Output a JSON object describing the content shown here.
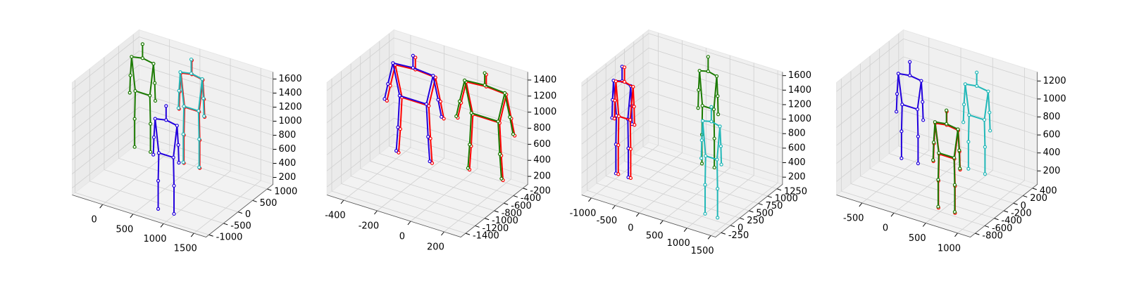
{
  "chart_data": [
    {
      "type": "scatter3d",
      "xlim": [
        -500,
        1700
      ],
      "ylim": [
        -1100,
        1200
      ],
      "zlim": [
        100,
        1700
      ],
      "xticks": [
        0,
        500,
        1000,
        1500
      ],
      "yticks": [
        -1000,
        -500,
        0,
        500,
        1000
      ],
      "zticks": [
        200,
        400,
        600,
        800,
        1000,
        1200,
        1400,
        1600
      ],
      "series": [
        {
          "color": "#1a7a00",
          "x": [
            -300,
            -300,
            -480,
            -500,
            -510,
            -120,
            -100,
            -90,
            -420,
            -430,
            -430,
            -180,
            -170,
            -170
          ],
          "y": [
            900,
            900,
            900,
            900,
            900,
            900,
            900,
            900,
            900,
            900,
            900,
            900,
            900,
            900
          ],
          "z": [
            1650,
            1450,
            1420,
            1150,
            900,
            1420,
            1150,
            900,
            950,
            550,
            150,
            950,
            550,
            150
          ]
        },
        {
          "color": "#ff0000",
          "x": [
            520,
            520,
            340,
            320,
            310,
            700,
            720,
            730,
            400,
            390,
            390,
            640,
            650,
            650
          ],
          "y": [
            880,
            880,
            880,
            880,
            880,
            880,
            880,
            880,
            880,
            880,
            880,
            880,
            880,
            880
          ],
          "z": [
            1650,
            1450,
            1420,
            1150,
            900,
            1420,
            1150,
            900,
            950,
            550,
            150,
            950,
            550,
            150
          ]
        },
        {
          "color": "#22b8b8",
          "x": [
            500,
            500,
            320,
            300,
            290,
            680,
            700,
            710,
            380,
            370,
            370,
            620,
            630,
            630
          ],
          "y": [
            900,
            900,
            900,
            900,
            900,
            900,
            900,
            900,
            900,
            900,
            900,
            900,
            900,
            900
          ],
          "z": [
            1650,
            1450,
            1420,
            1150,
            900,
            1420,
            1150,
            900,
            950,
            550,
            150,
            950,
            550,
            150
          ]
        },
        {
          "color": "#2200dd",
          "x": [
            900,
            900,
            720,
            700,
            690,
            1080,
            1100,
            1110,
            780,
            770,
            770,
            1020,
            1030,
            1030
          ],
          "y": [
            -800,
            -800,
            -800,
            -800,
            -800,
            -800,
            -800,
            -800,
            -800,
            -800,
            -800,
            -800,
            -800,
            -800
          ],
          "z": [
            1650,
            1450,
            1420,
            1150,
            900,
            1420,
            1150,
            900,
            950,
            550,
            150,
            950,
            550,
            150
          ]
        }
      ]
    },
    {
      "type": "scatter3d",
      "xlim": [
        -500,
        300
      ],
      "ylim": [
        -1500,
        -100
      ],
      "zlim": [
        100,
        1500
      ],
      "xticks": [
        -400,
        -200,
        0,
        200
      ],
      "yticks": [
        -1400,
        -1200,
        -1000,
        -800,
        -600,
        -400,
        -200
      ],
      "zticks": [
        200,
        400,
        600,
        800,
        1000,
        1200,
        1400
      ],
      "series": [
        {
          "color": "#ff0000",
          "x": [
            -280,
            -280,
            -400,
            -430,
            -450,
            -160,
            -130,
            -110,
            -360,
            -370,
            -380,
            -200,
            -190,
            -180
          ],
          "y": [
            -420,
            -420,
            -420,
            -420,
            -420,
            -420,
            -420,
            -420,
            -420,
            -420,
            -420,
            -420,
            -420,
            -420
          ],
          "z": [
            1450,
            1300,
            1280,
            1000,
            800,
            1280,
            1000,
            800,
            900,
            500,
            200,
            900,
            500,
            200
          ]
        },
        {
          "color": "#2200dd",
          "x": [
            -300,
            -300,
            -420,
            -450,
            -470,
            -180,
            -150,
            -130,
            -380,
            -390,
            -400,
            -220,
            -210,
            -200
          ],
          "y": [
            -400,
            -400,
            -400,
            -400,
            -400,
            -400,
            -400,
            -400,
            -400,
            -400,
            -400,
            -400,
            -400,
            -400
          ],
          "z": [
            1450,
            1300,
            1280,
            1000,
            800,
            1280,
            1000,
            800,
            900,
            500,
            200,
            900,
            500,
            200
          ]
        },
        {
          "color": "#ff0000",
          "x": [
            115,
            115,
            -5,
            -35,
            -55,
            235,
            265,
            285,
            35,
            25,
            15,
            195,
            205,
            215
          ],
          "y": [
            -320,
            -320,
            -320,
            -320,
            -320,
            -320,
            -320,
            -320,
            -320,
            -320,
            -320,
            -320,
            -320,
            -320
          ],
          "z": [
            1450,
            1300,
            1280,
            1000,
            800,
            1280,
            1000,
            800,
            900,
            500,
            200,
            900,
            500,
            200
          ]
        },
        {
          "color": "#1a7a00",
          "x": [
            100,
            100,
            -20,
            -50,
            -70,
            220,
            250,
            270,
            20,
            10,
            0,
            180,
            190,
            200
          ],
          "y": [
            -300,
            -300,
            -300,
            -300,
            -300,
            -300,
            -300,
            -300,
            -300,
            -300,
            -300,
            -300,
            -300,
            -300
          ],
          "z": [
            1450,
            1300,
            1280,
            1000,
            800,
            1280,
            1000,
            800,
            900,
            500,
            200,
            900,
            500,
            200
          ]
        }
      ]
    },
    {
      "type": "scatter3d",
      "xlim": [
        -1200,
        1600
      ],
      "ylim": [
        -400,
        1400
      ],
      "zlim": [
        100,
        1650
      ],
      "xticks": [
        -1000,
        -500,
        0,
        500,
        1000,
        1500
      ],
      "yticks": [
        -250,
        0,
        250,
        500,
        750,
        1000,
        1250
      ],
      "zticks": [
        200,
        400,
        600,
        800,
        1000,
        1200,
        1400,
        1600
      ],
      "series": [
        {
          "color": "#2200dd",
          "x": [
            -900,
            -900,
            -1080,
            -1100,
            -1110,
            -720,
            -700,
            -690,
            -1020,
            -1030,
            -1030,
            -780,
            -770,
            -770
          ],
          "y": [
            300,
            300,
            300,
            300,
            300,
            300,
            300,
            300,
            300,
            300,
            300,
            300,
            300,
            300
          ],
          "z": [
            1650,
            1450,
            1420,
            1150,
            900,
            1420,
            1150,
            900,
            950,
            550,
            150,
            950,
            550,
            150
          ]
        },
        {
          "color": "#ff0000",
          "x": [
            -850,
            -850,
            -1030,
            -1050,
            -1060,
            -670,
            -650,
            -640,
            -970,
            -980,
            -980,
            -730,
            -720,
            -720
          ],
          "y": [
            300,
            300,
            300,
            300,
            300,
            300,
            300,
            300,
            300,
            300,
            300,
            300,
            300,
            300
          ],
          "z": [
            1650,
            1450,
            1420,
            1150,
            900,
            1420,
            1150,
            900,
            950,
            550,
            150,
            950,
            550,
            150
          ]
        },
        {
          "color": "#1a7a00",
          "x": [
            200,
            200,
            20,
            0,
            -10,
            380,
            400,
            410,
            80,
            70,
            70,
            320,
            330,
            330
          ],
          "y": [
            1200,
            1200,
            1200,
            1200,
            1200,
            1200,
            1200,
            1200,
            1200,
            1200,
            1200,
            1200,
            1200,
            1200
          ],
          "z": [
            1650,
            1450,
            1420,
            1150,
            900,
            1420,
            1150,
            900,
            950,
            550,
            150,
            950,
            550,
            150
          ]
        },
        {
          "color": "#22b8b8",
          "x": [
            1200,
            1200,
            1020,
            1000,
            990,
            1380,
            1400,
            1410,
            1080,
            1070,
            1070,
            1320,
            1330,
            1330
          ],
          "y": [
            0,
            0,
            0,
            0,
            0,
            0,
            0,
            0,
            0,
            0,
            0,
            0,
            0,
            0
          ],
          "z": [
            1650,
            1450,
            1420,
            1150,
            900,
            1420,
            1150,
            900,
            950,
            550,
            150,
            950,
            550,
            150
          ]
        }
      ]
    },
    {
      "type": "scatter3d",
      "xlim": [
        -900,
        1200
      ],
      "ylim": [
        -900,
        500
      ],
      "zlim": [
        50,
        1300
      ],
      "xticks": [
        -500,
        0,
        500,
        1000
      ],
      "yticks": [
        -800,
        -600,
        -400,
        -200,
        0,
        200,
        400
      ],
      "zticks": [
        200,
        400,
        600,
        800,
        1000,
        1200
      ],
      "series": [
        {
          "color": "#2200dd",
          "x": [
            -500,
            -500,
            -680,
            -700,
            -710,
            -320,
            -300,
            -290,
            -620,
            -630,
            -630,
            -380,
            -370,
            -370
          ],
          "y": [
            100,
            100,
            100,
            100,
            100,
            100,
            100,
            100,
            100,
            100,
            100,
            100,
            100,
            100
          ],
          "z": [
            1200,
            1050,
            1030,
            800,
            600,
            1030,
            800,
            600,
            700,
            400,
            100,
            700,
            400,
            100
          ]
        },
        {
          "color": "#22b8b8",
          "x": [
            400,
            400,
            220,
            200,
            190,
            580,
            600,
            610,
            280,
            270,
            270,
            520,
            530,
            530
          ],
          "y": [
            300,
            300,
            300,
            300,
            300,
            300,
            300,
            300,
            300,
            300,
            300,
            300,
            300,
            300
          ],
          "z": [
            1200,
            1050,
            1030,
            800,
            600,
            1030,
            800,
            600,
            700,
            400,
            100,
            700,
            400,
            100
          ]
        },
        {
          "color": "#ff0000",
          "x": [
            620,
            620,
            440,
            420,
            410,
            800,
            820,
            830,
            500,
            490,
            490,
            740,
            750,
            750
          ],
          "y": [
            -620,
            -620,
            -620,
            -620,
            -620,
            -620,
            -620,
            -620,
            -620,
            -620,
            -620,
            -620,
            -620,
            -620
          ],
          "z": [
            1200,
            1050,
            1030,
            800,
            600,
            1030,
            800,
            600,
            700,
            400,
            100,
            700,
            400,
            100
          ]
        },
        {
          "color": "#1a7a00",
          "x": [
            600,
            600,
            420,
            400,
            390,
            780,
            800,
            810,
            480,
            470,
            470,
            720,
            730,
            730
          ],
          "y": [
            -600,
            -600,
            -600,
            -600,
            -600,
            -600,
            -600,
            -600,
            -600,
            -600,
            -600,
            -600,
            -600,
            -600
          ],
          "z": [
            1200,
            1050,
            1030,
            800,
            600,
            1030,
            800,
            600,
            700,
            400,
            100,
            700,
            400,
            100
          ]
        }
      ]
    }
  ]
}
